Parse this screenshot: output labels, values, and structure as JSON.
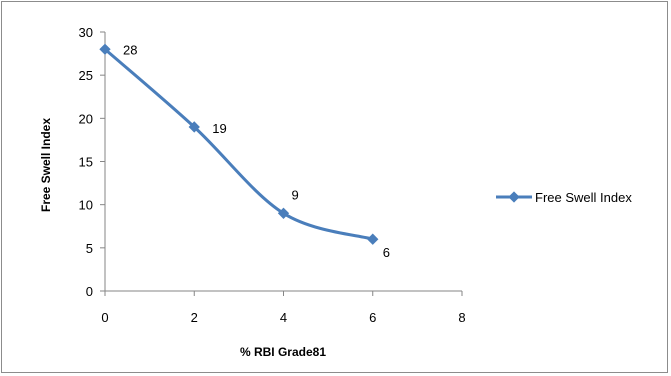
{
  "chart_data": {
    "type": "line",
    "smoothed": true,
    "xlabel": "% RBI Grade81",
    "ylabel": "Free Swell Index",
    "xlim": [
      0,
      8
    ],
    "ylim": [
      0,
      30
    ],
    "xticks": [
      0,
      2,
      4,
      6,
      8
    ],
    "yticks": [
      0,
      5,
      10,
      15,
      20,
      25,
      30
    ],
    "grid": false,
    "legend_position": "right",
    "series": [
      {
        "name": "Free Swell Index",
        "color": "#4a7ebb",
        "marker": "diamond",
        "x": [
          0,
          2,
          4,
          6
        ],
        "y": [
          28,
          19,
          9,
          6
        ],
        "data_labels": [
          "28",
          "19",
          "9",
          "6"
        ]
      }
    ]
  }
}
